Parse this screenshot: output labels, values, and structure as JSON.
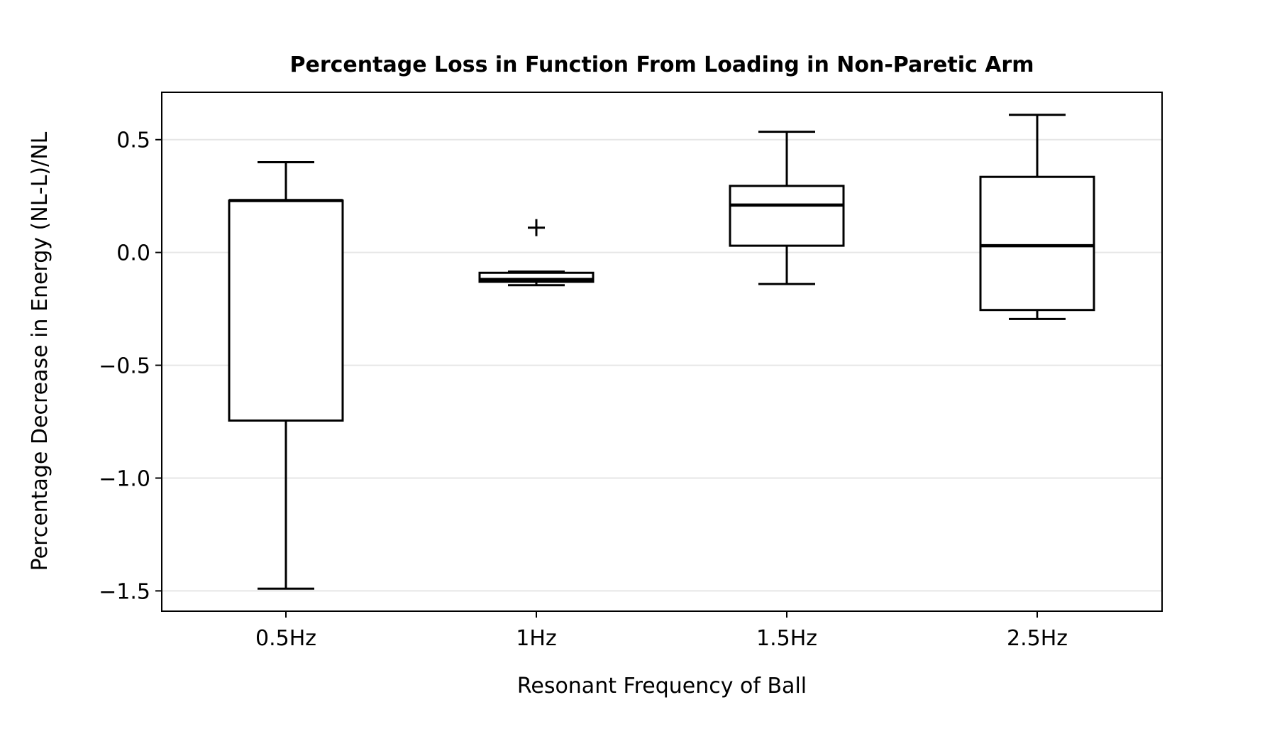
{
  "chart_data": {
    "type": "box",
    "title": "Percentage Loss in Function From Loading in Non-Paretic Arm",
    "xlabel": "Resonant Frequency of Ball",
    "ylabel": "Percentage Decrease in Energy (NL-L)/NL",
    "categories": [
      "0.5Hz",
      "1Hz",
      "1.5Hz",
      "2.5Hz"
    ],
    "ylim": [
      -1.59,
      0.71
    ],
    "yticks": [
      0.5,
      0.0,
      -0.5,
      -1.0,
      -1.5
    ],
    "ytick_labels": [
      "0.5",
      "0.0",
      "−0.5",
      "−1.0",
      "−1.5"
    ],
    "grid": "horizontal",
    "boxes": [
      {
        "category": "0.5Hz",
        "whisker_low": -1.49,
        "q1": -0.745,
        "median": 0.23,
        "q3": 0.23,
        "whisker_high": 0.4,
        "outliers": []
      },
      {
        "category": "1Hz",
        "whisker_low": -0.145,
        "q1": -0.13,
        "median": -0.12,
        "q3": -0.09,
        "whisker_high": -0.085,
        "outliers": [
          0.11
        ]
      },
      {
        "category": "1.5Hz",
        "whisker_low": -0.14,
        "q1": 0.03,
        "median": 0.21,
        "q3": 0.295,
        "whisker_high": 0.535,
        "outliers": []
      },
      {
        "category": "2.5Hz",
        "whisker_low": -0.295,
        "q1": -0.255,
        "median": 0.03,
        "q3": 0.335,
        "whisker_high": 0.61,
        "outliers": []
      }
    ],
    "colors": {
      "box": "#000000",
      "grid": "#e6e6e6",
      "background": "#ffffff"
    }
  }
}
